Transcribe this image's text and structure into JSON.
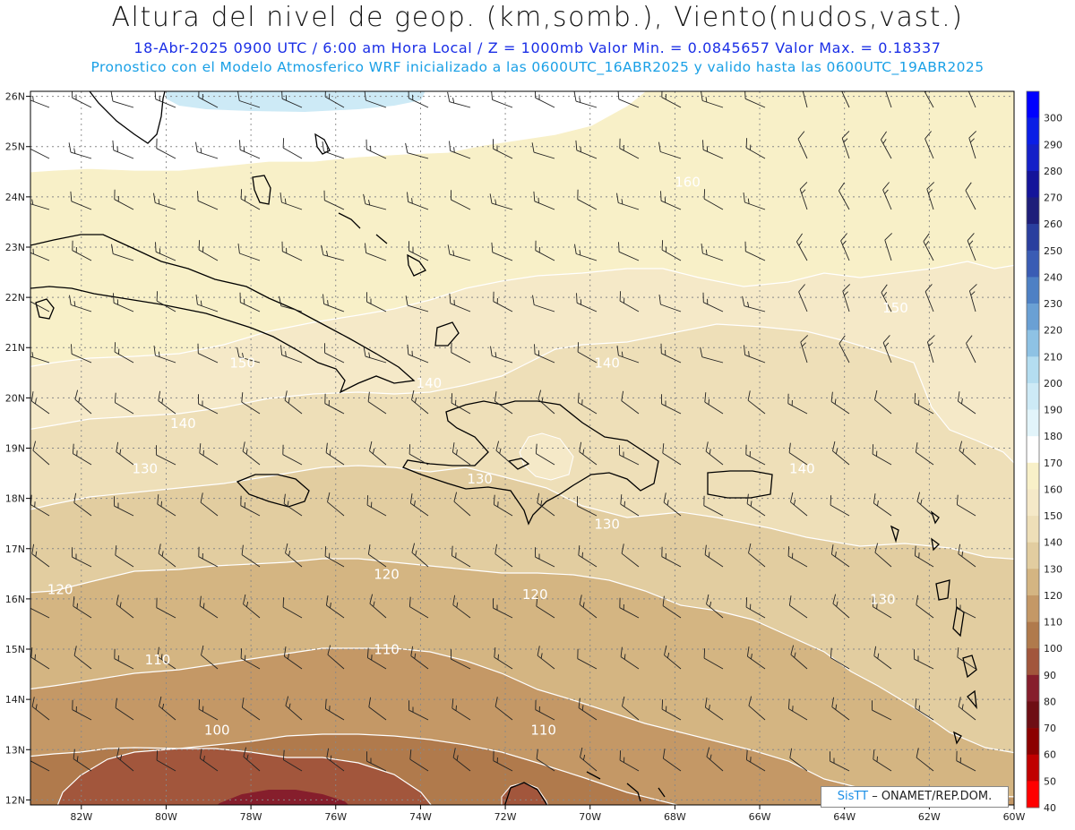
{
  "header": {
    "title": "Altura del nivel de geop. (km,somb.), Viento(nudos,vast.)",
    "subtitle": "18-Abr-2025  0900 UTC / 6:00 am Hora Local / Z = 1000mb  Valor Min. = 0.0845657  Valor Max. = 0.18337",
    "model_info": "Pronostico con el Modelo Atmosferico WRF inicializado a las 0600UTC_16ABR2025 y valido hasta las  0600UTC_19ABR2025"
  },
  "axes": {
    "lon_labels": [
      "82W",
      "80W",
      "78W",
      "76W",
      "74W",
      "72W",
      "70W",
      "68W",
      "66W",
      "64W",
      "62W",
      "60W"
    ],
    "lon_values": [
      -82,
      -80,
      -78,
      -76,
      -74,
      -72,
      -70,
      -68,
      -66,
      -64,
      -62,
      -60
    ],
    "lat_labels": [
      "26N",
      "25N",
      "24N",
      "23N",
      "22N",
      "21N",
      "20N",
      "19N",
      "18N",
      "17N",
      "16N",
      "15N",
      "14N",
      "13N",
      "12N"
    ],
    "lat_values": [
      26,
      25,
      24,
      23,
      22,
      21,
      20,
      19,
      18,
      17,
      16,
      15,
      14,
      13,
      12
    ],
    "lon_range": [
      -83.2,
      -60
    ],
    "lat_range": [
      11.9,
      26.1
    ],
    "grid": true
  },
  "contours": {
    "labels": [
      {
        "text": "160",
        "lon": -67.7,
        "lat": 24.2
      },
      {
        "text": "150",
        "lon": -78.2,
        "lat": 20.6
      },
      {
        "text": "150",
        "lon": -62.8,
        "lat": 21.7
      },
      {
        "text": "140",
        "lon": -73.8,
        "lat": 20.2
      },
      {
        "text": "140",
        "lon": -69.6,
        "lat": 20.6
      },
      {
        "text": "140",
        "lon": -79.6,
        "lat": 19.4
      },
      {
        "text": "140",
        "lon": -65.0,
        "lat": 18.5
      },
      {
        "text": "130",
        "lon": -80.5,
        "lat": 18.5
      },
      {
        "text": "130",
        "lon": -72.6,
        "lat": 18.3
      },
      {
        "text": "130",
        "lon": -69.6,
        "lat": 17.4
      },
      {
        "text": "130",
        "lon": -63.1,
        "lat": 15.9
      },
      {
        "text": "120",
        "lon": -82.5,
        "lat": 16.1
      },
      {
        "text": "120",
        "lon": -74.8,
        "lat": 16.4
      },
      {
        "text": "120",
        "lon": -71.3,
        "lat": 16.0
      },
      {
        "text": "110",
        "lon": -80.2,
        "lat": 14.7
      },
      {
        "text": "110",
        "lon": -74.8,
        "lat": 14.9
      },
      {
        "text": "110",
        "lon": -71.1,
        "lat": 13.3
      },
      {
        "text": "100",
        "lon": -78.8,
        "lat": 13.3
      }
    ]
  },
  "colorbar": {
    "levels": [
      "300",
      "290",
      "280",
      "270",
      "260",
      "250",
      "240",
      "230",
      "220",
      "210",
      "200",
      "190",
      "180",
      "170",
      "160",
      "150",
      "140",
      "130",
      "120",
      "110",
      "100",
      "90",
      "80",
      "70",
      "60",
      "50",
      "40"
    ],
    "colors": [
      "#0000ff",
      "#0a1ee6",
      "#1420c8",
      "#14149a",
      "#1e1e7a",
      "#2a3e9e",
      "#3a5cb4",
      "#4e80c4",
      "#6aa0d4",
      "#8ec2e4",
      "#b4ddf0",
      "#cdeaf6",
      "#e2f4fa",
      "#ffffff",
      "#f8f0c8",
      "#f5e9c8",
      "#eedfb8",
      "#e2cda0",
      "#d4b582",
      "#c49866",
      "#b07a4c",
      "#a2563c",
      "#861e2c",
      "#6e0e14",
      "#8c0000",
      "#c00000",
      "#ff0000"
    ]
  },
  "credit": {
    "brand": "SisTT",
    "org": " – ONAMET/REP.DOM."
  }
}
